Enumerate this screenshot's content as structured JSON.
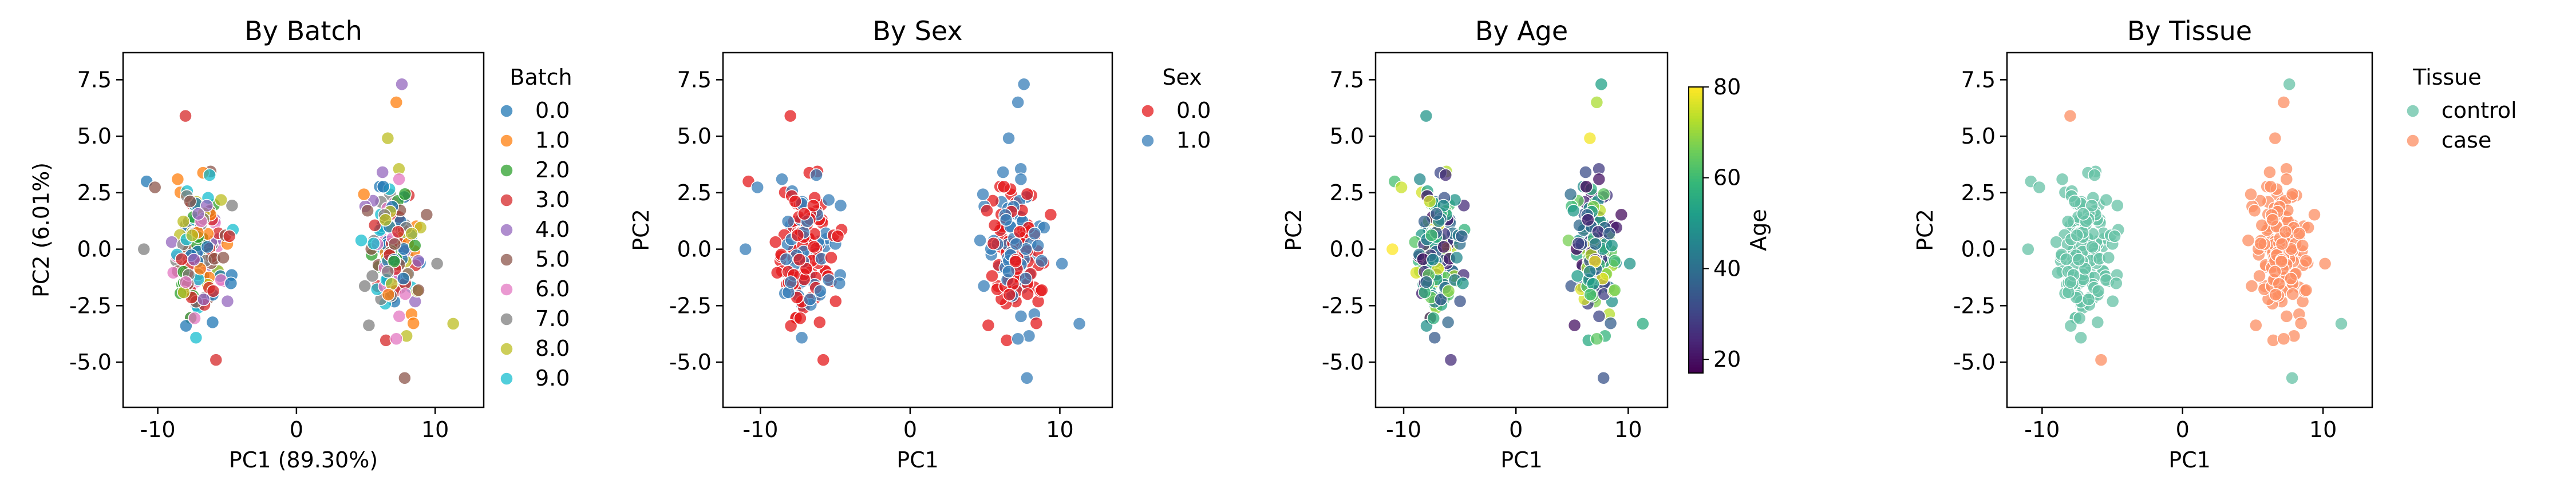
{
  "chart_data": [
    {
      "type": "scatter",
      "title": "By Batch",
      "xlabel": "PC1 (89.30%)",
      "ylabel": "PC2 (6.01%)",
      "xlim": [
        -12.5,
        13.5
      ],
      "ylim": [
        -7.0,
        8.7
      ],
      "xticks": [
        -10,
        0,
        10
      ],
      "yticks": [
        -5.0,
        -2.5,
        0.0,
        2.5,
        5.0,
        7.5
      ],
      "grid": false,
      "legend_title": "Batch",
      "legend_position": "right-outside",
      "hue_type": "categorical",
      "groups": [
        {
          "name": "0.0",
          "color": "#1f77b4"
        },
        {
          "name": "1.0",
          "color": "#ff7f0e"
        },
        {
          "name": "2.0",
          "color": "#2ca02c"
        },
        {
          "name": "3.0",
          "color": "#d62728"
        },
        {
          "name": "4.0",
          "color": "#9467bd"
        },
        {
          "name": "5.0",
          "color": "#8c564b"
        },
        {
          "name": "6.0",
          "color": "#e377c2"
        },
        {
          "name": "7.0",
          "color": "#7f7f7f"
        },
        {
          "name": "8.0",
          "color": "#bcbd22"
        },
        {
          "name": "9.0",
          "color": "#17becf"
        }
      ]
    },
    {
      "type": "scatter",
      "title": "By Sex",
      "xlabel": "PC1",
      "ylabel": "PC2",
      "xlim": [
        -12.5,
        13.5
      ],
      "ylim": [
        -7.0,
        8.7
      ],
      "xticks": [
        -10,
        0,
        10
      ],
      "yticks": [
        -5.0,
        -2.5,
        0.0,
        2.5,
        5.0,
        7.5
      ],
      "grid": false,
      "legend_title": "Sex",
      "legend_position": "right-outside",
      "hue_type": "categorical",
      "groups": [
        {
          "name": "0.0",
          "color": "#e41a1c"
        },
        {
          "name": "1.0",
          "color": "#377eb8"
        }
      ]
    },
    {
      "type": "scatter",
      "title": "By Age",
      "xlabel": "PC1",
      "ylabel": "PC2",
      "xlim": [
        -12.5,
        13.5
      ],
      "ylim": [
        -7.0,
        8.7
      ],
      "xticks": [
        -10,
        0,
        10
      ],
      "yticks": [
        -5.0,
        -2.5,
        0.0,
        2.5,
        5.0,
        7.5
      ],
      "grid": false,
      "hue_type": "continuous",
      "colormap": "viridis",
      "colorbar_label": "Age",
      "colorbar_range": [
        17,
        80
      ],
      "colorbar_ticks": [
        20,
        40,
        60,
        80
      ]
    },
    {
      "type": "scatter",
      "title": "By Tissue",
      "xlabel": "PC1",
      "ylabel": "PC2",
      "xlim": [
        -12.5,
        13.5
      ],
      "ylim": [
        -7.0,
        8.7
      ],
      "xticks": [
        -10,
        0,
        10
      ],
      "yticks": [
        -5.0,
        -2.5,
        0.0,
        2.5,
        5.0,
        7.5
      ],
      "grid": false,
      "legend_title": "Tissue",
      "legend_position": "right-outside",
      "hue_type": "categorical",
      "groups": [
        {
          "name": "control",
          "color": "#66c2a5"
        },
        {
          "name": "case",
          "color": "#fc8d62"
        }
      ]
    }
  ]
}
